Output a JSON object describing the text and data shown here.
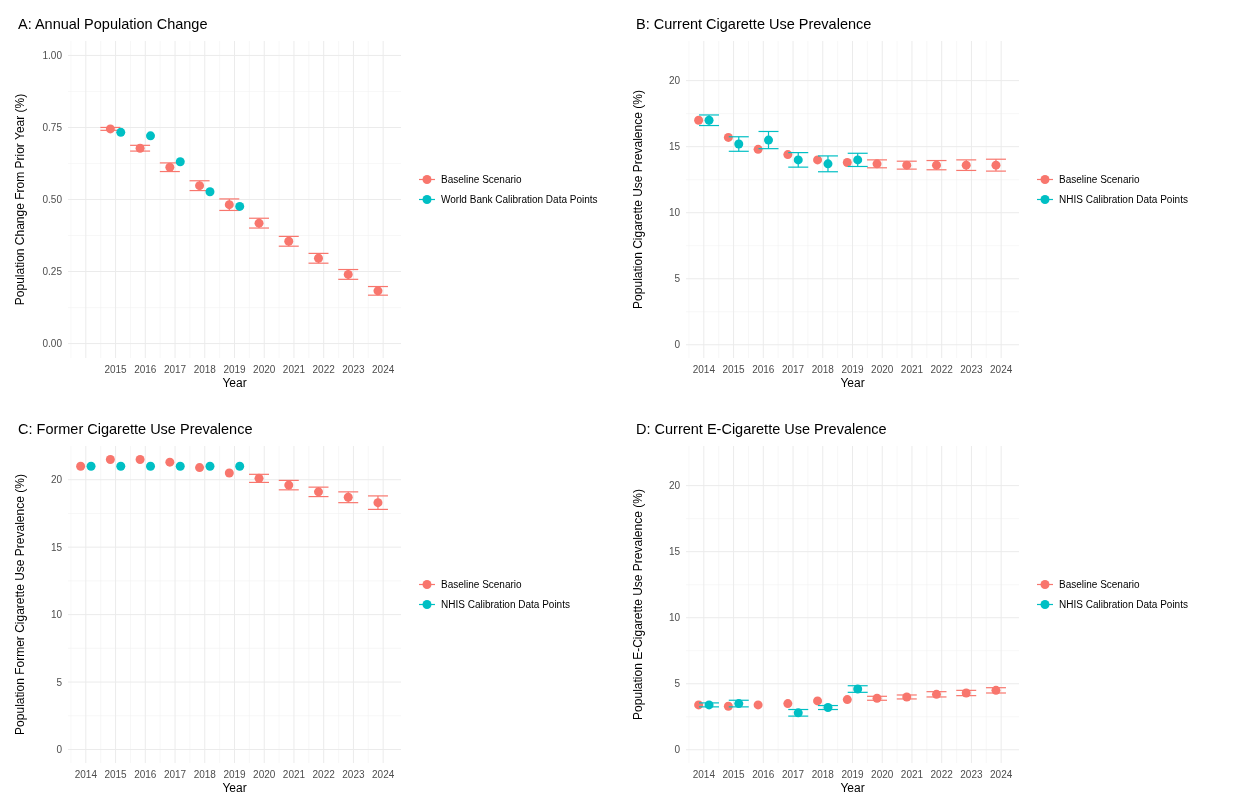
{
  "chart_data": [
    {
      "type": "scatter",
      "title": "A: Annual Population Change",
      "xlabel": "Year",
      "ylabel": "Population Change From Prior Year (%)",
      "categories": [
        null,
        "2015",
        "2016",
        "2017",
        "2018",
        "2019",
        "2020",
        "2021",
        "2022",
        "2023",
        "2024"
      ],
      "ylim": [
        -0.05,
        1.05
      ],
      "yticks": [
        {
          "value": 0,
          "label": "0.00"
        },
        0.25,
        {
          "value": 0.5,
          "label": "0.50"
        },
        0.75,
        {
          "value": 1,
          "label": "1.00"
        }
      ],
      "grid": true,
      "legend": "right",
      "marker": "circle",
      "series": [
        {
          "name": "Baseline Scenario",
          "color": "#f8766d",
          "values": [
            null,
            0.745,
            0.678,
            0.612,
            0.548,
            0.482,
            0.418,
            0.355,
            0.296,
            0.24,
            0.183
          ],
          "errors": [
            null,
            0.005,
            0.01,
            0.015,
            0.017,
            0.02,
            0.017,
            0.017,
            0.017,
            0.017,
            0.015
          ]
        },
        {
          "name": "World Bank Calibration Data Points",
          "color": "#00bfc4",
          "values": [
            null,
            0.733,
            0.721,
            0.631,
            0.527,
            0.476,
            null,
            null,
            null,
            null,
            null
          ]
        }
      ]
    },
    {
      "type": "scatter",
      "title": "B: Current Cigarette Use Prevalence",
      "xlabel": "Year",
      "ylabel": "Population Cigarette Use Prevalence (%)",
      "categories": [
        "2014",
        "2015",
        "2016",
        "2017",
        "2018",
        "2019",
        "2020",
        "2021",
        "2022",
        "2023",
        "2024"
      ],
      "ylim": [
        -1,
        23
      ],
      "yticks": [
        0,
        5,
        10,
        15,
        20
      ],
      "grid": true,
      "legend": "right",
      "marker": "circle",
      "series": [
        {
          "name": "Baseline Scenario",
          "color": "#f8766d",
          "values": [
            17.0,
            15.7,
            14.8,
            14.4,
            14.0,
            13.8,
            13.7,
            13.6,
            13.6,
            13.6,
            13.6
          ],
          "errors": [
            null,
            null,
            null,
            null,
            null,
            null,
            0.3,
            0.3,
            0.35,
            0.4,
            0.45
          ]
        },
        {
          "name": "NHIS Calibration Data Points",
          "color": "#00bfc4",
          "values": [
            17.0,
            15.2,
            15.5,
            14.0,
            13.7,
            14.0,
            null,
            null,
            null,
            null,
            null
          ],
          "errors": [
            0.4,
            0.55,
            0.65,
            0.55,
            0.6,
            0.5,
            null,
            null,
            null,
            null,
            null
          ]
        }
      ]
    },
    {
      "type": "scatter",
      "title": "C: Former Cigarette Use Prevalence",
      "xlabel": "Year",
      "ylabel": "Population Former Cigarette Use Prevalence (%)",
      "categories": [
        "2014",
        "2015",
        "2016",
        "2017",
        "2018",
        "2019",
        "2020",
        "2021",
        "2022",
        "2023",
        "2024"
      ],
      "ylim": [
        -1,
        22.5
      ],
      "yticks": [
        0,
        5,
        10,
        15,
        20
      ],
      "grid": true,
      "legend": "right",
      "marker": "circle",
      "series": [
        {
          "name": "Baseline Scenario",
          "color": "#f8766d",
          "values": [
            21.0,
            21.5,
            21.5,
            21.3,
            20.9,
            20.5,
            20.1,
            19.6,
            19.1,
            18.7,
            18.3
          ],
          "errors": [
            null,
            null,
            null,
            null,
            null,
            null,
            0.3,
            0.35,
            0.35,
            0.4,
            0.5
          ]
        },
        {
          "name": "NHIS Calibration Data Points",
          "color": "#00bfc4",
          "values": [
            21.0,
            21.0,
            21.0,
            21.0,
            21.0,
            21.0,
            null,
            null,
            null,
            null,
            null
          ]
        }
      ]
    },
    {
      "type": "scatter",
      "title": "D: Current E-Cigarette Use Prevalence",
      "xlabel": "Year",
      "ylabel": "Population E-Cigarette Use Prevalence (%)",
      "categories": [
        "2014",
        "2015",
        "2016",
        "2017",
        "2018",
        "2019",
        "2020",
        "2021",
        "2022",
        "2023",
        "2024"
      ],
      "ylim": [
        -1,
        23
      ],
      "yticks": [
        0,
        5,
        10,
        15,
        20
      ],
      "grid": true,
      "legend": "right",
      "marker": "circle",
      "series": [
        {
          "name": "Baseline Scenario",
          "color": "#f8766d",
          "values": [
            3.4,
            3.3,
            3.4,
            3.5,
            3.7,
            3.8,
            3.9,
            4.0,
            4.2,
            4.3,
            4.5
          ],
          "errors": [
            null,
            null,
            null,
            null,
            null,
            null,
            0.15,
            0.15,
            0.2,
            0.2,
            0.2
          ]
        },
        {
          "name": "NHIS Calibration Data Points",
          "color": "#00bfc4",
          "values": [
            3.4,
            3.5,
            null,
            2.8,
            3.2,
            4.6,
            null,
            null,
            null,
            null,
            null
          ],
          "errors": [
            0.15,
            0.25,
            null,
            0.25,
            0.15,
            0.25,
            null,
            null,
            null,
            null,
            null
          ]
        }
      ]
    }
  ]
}
